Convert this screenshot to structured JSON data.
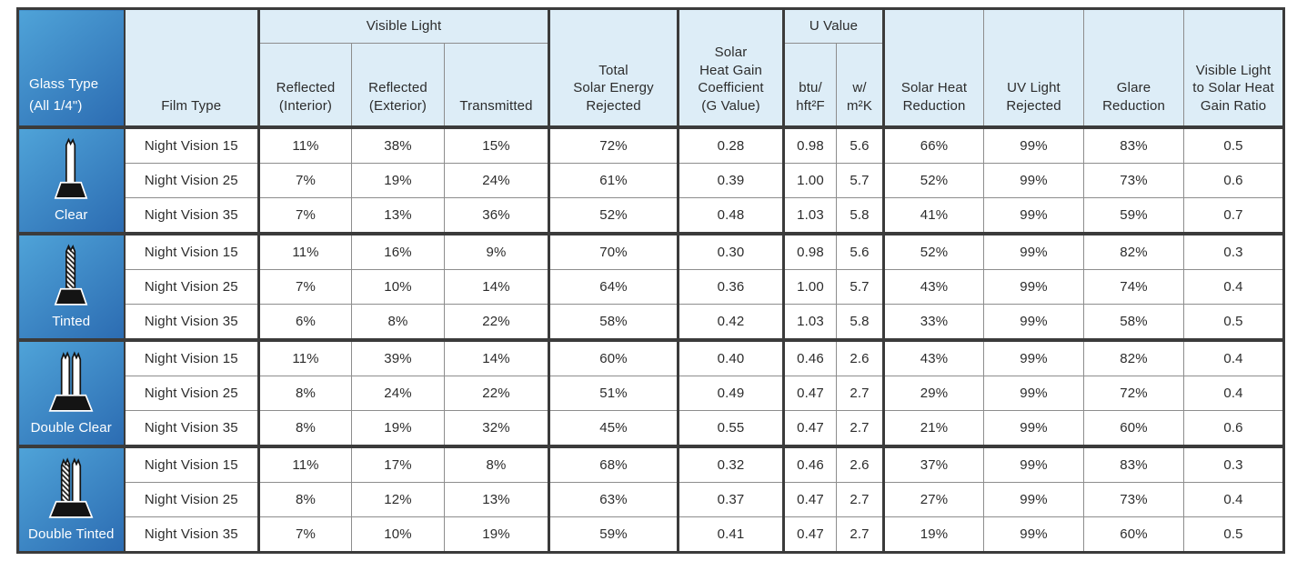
{
  "colors": {
    "header_bg": "#ddedf7",
    "border_dark": "#3b3b3b",
    "border_light": "#8d8d8d",
    "grad_start": "#4fa3d8",
    "grad_end": "#2c6cb2"
  },
  "table": {
    "header": {
      "glass_type": [
        "Glass Type",
        "(All 1/4\")"
      ],
      "film_type": "Film Type",
      "visible_light": "Visible Light",
      "reflected_interior": [
        "Reflected",
        "(Interior)"
      ],
      "reflected_exterior": [
        "Reflected",
        "(Exterior)"
      ],
      "transmitted": "Transmitted",
      "total_solar_energy_rejected": [
        "Total",
        "Solar Energy",
        "Rejected"
      ],
      "shgc": [
        "Solar",
        "Heat Gain",
        "Coefficient",
        "(G Value)"
      ],
      "u_value": "U Value",
      "u_value_btu": [
        "btu/",
        "hft²F"
      ],
      "u_value_w": [
        "w/",
        "m²K"
      ],
      "solar_heat_reduction": [
        "Solar Heat",
        "Reduction"
      ],
      "uv_light_rejected": [
        "UV Light",
        "Rejected"
      ],
      "glare_reduction": [
        "Glare",
        "Reduction"
      ],
      "vl_shg_ratio": [
        "Visible Light",
        "to Solar Heat",
        "Gain Ratio"
      ]
    },
    "groups": [
      {
        "label": "Clear",
        "icon": "single-clear-pane-icon",
        "rows": [
          {
            "film": "Night Vision 15",
            "cells": [
              "11%",
              "38%",
              "15%",
              "72%",
              "0.28",
              "0.98",
              "5.6",
              "66%",
              "99%",
              "83%",
              "0.5"
            ]
          },
          {
            "film": "Night Vision 25",
            "cells": [
              "7%",
              "19%",
              "24%",
              "61%",
              "0.39",
              "1.00",
              "5.7",
              "52%",
              "99%",
              "73%",
              "0.6"
            ]
          },
          {
            "film": "Night Vision 35",
            "cells": [
              "7%",
              "13%",
              "36%",
              "52%",
              "0.48",
              "1.03",
              "5.8",
              "41%",
              "99%",
              "59%",
              "0.7"
            ]
          }
        ]
      },
      {
        "label": "Tinted",
        "icon": "single-tinted-pane-icon",
        "rows": [
          {
            "film": "Night Vision 15",
            "cells": [
              "11%",
              "16%",
              "9%",
              "70%",
              "0.30",
              "0.98",
              "5.6",
              "52%",
              "99%",
              "82%",
              "0.3"
            ]
          },
          {
            "film": "Night Vision 25",
            "cells": [
              "7%",
              "10%",
              "14%",
              "64%",
              "0.36",
              "1.00",
              "5.7",
              "43%",
              "99%",
              "74%",
              "0.4"
            ]
          },
          {
            "film": "Night Vision 35",
            "cells": [
              "6%",
              "8%",
              "22%",
              "58%",
              "0.42",
              "1.03",
              "5.8",
              "33%",
              "99%",
              "58%",
              "0.5"
            ]
          }
        ]
      },
      {
        "label": "Double Clear",
        "icon": "double-clear-pane-icon",
        "rows": [
          {
            "film": "Night Vision 15",
            "cells": [
              "11%",
              "39%",
              "14%",
              "60%",
              "0.40",
              "0.46",
              "2.6",
              "43%",
              "99%",
              "82%",
              "0.4"
            ]
          },
          {
            "film": "Night Vision 25",
            "cells": [
              "8%",
              "24%",
              "22%",
              "51%",
              "0.49",
              "0.47",
              "2.7",
              "29%",
              "99%",
              "72%",
              "0.4"
            ]
          },
          {
            "film": "Night Vision 35",
            "cells": [
              "8%",
              "19%",
              "32%",
              "45%",
              "0.55",
              "0.47",
              "2.7",
              "21%",
              "99%",
              "60%",
              "0.6"
            ]
          }
        ]
      },
      {
        "label": "Double Tinted",
        "icon": "double-tinted-pane-icon",
        "rows": [
          {
            "film": "Night Vision 15",
            "cells": [
              "11%",
              "17%",
              "8%",
              "68%",
              "0.32",
              "0.46",
              "2.6",
              "37%",
              "99%",
              "83%",
              "0.3"
            ]
          },
          {
            "film": "Night Vision 25",
            "cells": [
              "8%",
              "12%",
              "13%",
              "63%",
              "0.37",
              "0.47",
              "2.7",
              "27%",
              "99%",
              "73%",
              "0.4"
            ]
          },
          {
            "film": "Night Vision 35",
            "cells": [
              "7%",
              "10%",
              "19%",
              "59%",
              "0.41",
              "0.47",
              "2.7",
              "19%",
              "99%",
              "60%",
              "0.5"
            ]
          }
        ]
      }
    ]
  }
}
